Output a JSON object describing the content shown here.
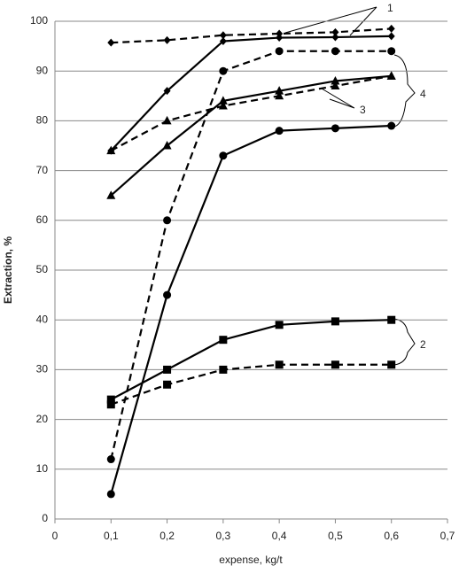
{
  "chart_data": {
    "type": "line",
    "xlabel": "expense, kg/t",
    "ylabel": "Extraction, %",
    "x": [
      0.1,
      0.2,
      0.3,
      0.4,
      0.5,
      0.6
    ],
    "series": [
      {
        "color": "#000000",
        "dashed": false,
        "marker": "diamond",
        "values": [
          74,
          86,
          96,
          96.7,
          96.8,
          97
        ]
      },
      {
        "color": "#000000",
        "dashed": true,
        "marker": "diamond",
        "values": [
          95.7,
          96.2,
          97.2,
          97.5,
          97.8,
          98.5
        ]
      },
      {
        "color": "#000000",
        "dashed": false,
        "marker": "circle",
        "values": [
          5,
          45,
          73,
          78,
          78.5,
          79
        ]
      },
      {
        "color": "#000000",
        "dashed": true,
        "marker": "circle",
        "values": [
          12,
          60,
          90,
          94,
          94,
          94
        ]
      },
      {
        "color": "#000000",
        "dashed": false,
        "marker": "triangle",
        "values": [
          65,
          75,
          84,
          86,
          88,
          89
        ]
      },
      {
        "color": "#000000",
        "dashed": true,
        "marker": "triangle",
        "values": [
          74,
          80,
          83,
          85,
          87,
          89
        ]
      },
      {
        "color": "#000000",
        "dashed": false,
        "marker": "square",
        "values": [
          24,
          30,
          36,
          39,
          39.7,
          40
        ]
      },
      {
        "color": "#000000",
        "dashed": true,
        "marker": "square",
        "values": [
          23,
          27,
          30,
          31,
          31,
          31
        ]
      }
    ],
    "annotations": [
      "1",
      "2",
      "3",
      "4"
    ],
    "xlim": [
      0,
      0.7
    ],
    "xticks": [
      0,
      {
        "value": 0.1,
        "label": "0,1"
      },
      {
        "value": 0.2,
        "label": "0,2"
      },
      {
        "value": 0.3,
        "label": "0,3"
      },
      {
        "value": 0.4,
        "label": "0,4"
      },
      {
        "value": 0.5,
        "label": "0,5"
      },
      {
        "value": 0.6,
        "label": "0,6"
      },
      {
        "value": 0.7,
        "label": "0,7"
      }
    ],
    "ylim": [
      0,
      100
    ],
    "yticks": [
      0,
      10,
      20,
      30,
      40,
      50,
      60,
      70,
      80,
      90,
      100
    ],
    "grid": true
  }
}
